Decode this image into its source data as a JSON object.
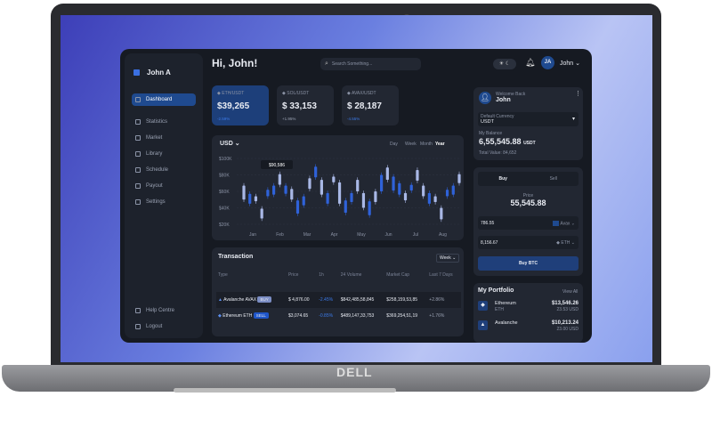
{
  "brand": "DELL",
  "app": {
    "user_name": "John A",
    "greeting": "Hi, John!",
    "search_placeholder": "Search Something...",
    "header_user": {
      "initials": "JA",
      "name": "John"
    },
    "sidebar": {
      "items": [
        {
          "label": "Dashboard",
          "icon": "grid-icon",
          "active": true
        },
        {
          "label": "Statistics",
          "icon": "statistics-icon"
        },
        {
          "label": "Market",
          "icon": "chart-line-icon"
        },
        {
          "label": "Library",
          "icon": "library-icon"
        },
        {
          "label": "Schedule",
          "icon": "calendar-icon"
        },
        {
          "label": "Payout",
          "icon": "wallet-icon"
        },
        {
          "label": "Settings",
          "icon": "gear-icon"
        }
      ],
      "bottom": [
        {
          "label": "Help Centre",
          "icon": "help-icon"
        },
        {
          "label": "Logout",
          "icon": "logout-icon"
        }
      ]
    },
    "tickers": [
      {
        "pair": "ETH/USDT",
        "price": "$39,265",
        "change": "-2.59%",
        "icon": "ethereum-icon",
        "active": true
      },
      {
        "pair": "SOL/USDT",
        "price": "$ 33,153",
        "change": "+1.95%",
        "icon": "solana-icon"
      },
      {
        "pair": "AVAX/USDT",
        "price": "$ 28,187",
        "change": "-4.55%",
        "icon": "avalanche-icon"
      }
    ],
    "chart": {
      "currency": "USD",
      "ranges": [
        "Day",
        "Week",
        "Month",
        "Year"
      ],
      "selected_range": "Year",
      "tooltip": "$90,586"
    },
    "transaction": {
      "title": "Transaction",
      "period": "Week",
      "columns": [
        "Type",
        "Price",
        "1h",
        "24 Volume",
        "Market Cap",
        "Last 7 Days"
      ],
      "rows": [
        {
          "name": "Avalanche AVAX",
          "badge": "BUY",
          "price": "$ 4,876.00",
          "h1": "-2.45%",
          "volume": "$842,485,58,845",
          "cap": "$258,159,53,85",
          "d7": "+2.86%"
        },
        {
          "name": "Ethereum ETH",
          "badge": "SELL",
          "price": "$3,074.65",
          "h1": "-0.85%",
          "volume": "$489,147,33,753",
          "cap": "$369,254,51,19",
          "d7": "+1.76%"
        }
      ]
    },
    "profile": {
      "welcome": "Welcome Back",
      "name": "John",
      "currency_label": "Default Currency",
      "currency": "USDT",
      "balance_label": "My Balance",
      "balance": "6,55,545.88",
      "balance_unit": "USDT",
      "total_label": "Total Value:",
      "total": "84,652"
    },
    "trade": {
      "tabs": [
        "Buy",
        "Sell"
      ],
      "price_label": "Price",
      "price": "55,545.88",
      "amount1": "786.55",
      "coin1": "Avax",
      "amount2": "8,156.67",
      "coin2": "ETH",
      "button": "Buy BTC"
    },
    "portfolio": {
      "title": "My Portfolio",
      "view_all": "View All",
      "items": [
        {
          "name": "Ethereum",
          "symbol": "ETH",
          "value": "$13,546.26",
          "sub": "23.53 USD"
        },
        {
          "name": "Avalanche",
          "symbol": "",
          "value": "$10,213.24",
          "sub": "23.00 USD"
        }
      ]
    }
  },
  "chart_data": {
    "type": "candlestick",
    "x_tick_labels": [
      "Jan",
      "Feb",
      "Mar",
      "Apr",
      "May",
      "Jun",
      "Jul",
      "Aug"
    ],
    "y_tick_labels": [
      "$20K",
      "$40K",
      "$60K",
      "$80K",
      "$100K"
    ],
    "ylim": [
      20,
      100
    ],
    "y_unit": "K USD",
    "grid": true,
    "colors": {
      "light": "#a9b8e6",
      "blue": "#2f62d9"
    },
    "candles": [
      [
        50,
        67,
        "light"
      ],
      [
        57,
        45,
        "blue"
      ],
      [
        48,
        54,
        "light"
      ],
      [
        27,
        39,
        "light"
      ],
      [
        62,
        54,
        "blue"
      ],
      [
        67,
        56,
        "blue"
      ],
      [
        68,
        81,
        "light"
      ],
      [
        67,
        57,
        "blue"
      ],
      [
        50,
        63,
        "light"
      ],
      [
        49,
        33,
        "blue"
      ],
      [
        54,
        43,
        "blue"
      ],
      [
        63,
        76,
        "light"
      ],
      [
        90,
        77,
        "blue"
      ],
      [
        56,
        74,
        "light"
      ],
      [
        58,
        45,
        "blue"
      ],
      [
        71,
        78,
        "light"
      ],
      [
        45,
        71,
        "light"
      ],
      [
        49,
        34,
        "blue"
      ],
      [
        58,
        47,
        "blue"
      ],
      [
        60,
        74,
        "light"
      ],
      [
        40,
        58,
        "light"
      ],
      [
        48,
        31,
        "blue"
      ],
      [
        47,
        60,
        "light"
      ],
      [
        80,
        60,
        "blue"
      ],
      [
        74,
        89,
        "light"
      ],
      [
        78,
        61,
        "blue"
      ],
      [
        70,
        56,
        "blue"
      ],
      [
        49,
        58,
        "light"
      ],
      [
        68,
        61,
        "blue"
      ],
      [
        73,
        86,
        "light"
      ],
      [
        54,
        67,
        "light"
      ],
      [
        58,
        45,
        "blue"
      ],
      [
        47,
        54,
        "light"
      ],
      [
        26,
        40,
        "light"
      ],
      [
        62,
        54,
        "blue"
      ],
      [
        67,
        56,
        "blue"
      ],
      [
        70,
        81,
        "light"
      ]
    ]
  }
}
